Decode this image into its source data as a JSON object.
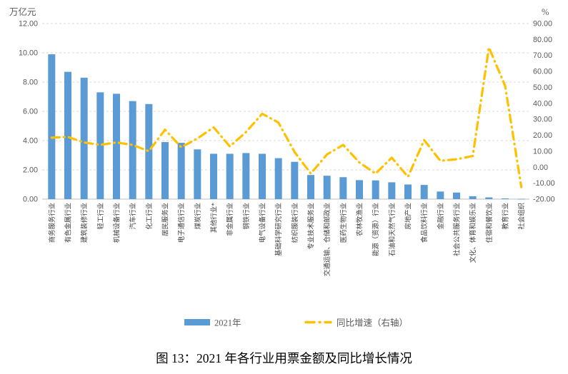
{
  "style": {
    "background": "#FFFFFF",
    "bar_color": "#5B9BD5",
    "line_color": "#FFC000",
    "grid_color": "#D9D9D9",
    "axis_color": "#BFBFBF",
    "tick_text_color": "#595959",
    "caption_color": "#000000"
  },
  "chart_data": {
    "type": "combo_bar_line",
    "title": "图 13：2021 年各行业用票金额及同比增长情况",
    "grid": true,
    "legend_position": "bottom",
    "categories": [
      "商务服务行业",
      "有色金属行业",
      "建筑装修行业",
      "轻工行业",
      "机械设备行业",
      "汽车行业",
      "化工行业",
      "居民服务业",
      "电子通信行业",
      "煤炭行业",
      "其他行业*",
      "非金属行业",
      "钢铁行业",
      "电气设备行业",
      "基础科学研究行业",
      "纺织服装行业",
      "专业技术服务业",
      "交通运输、仓储和邮政业",
      "医药生物行业",
      "农林牧渔业",
      "能源（资源）行业",
      "石油和天然气行业",
      "房地产业",
      "食品饮料行业",
      "金融行业",
      "社会公共服务行业",
      "文化、体育和娱乐业",
      "住宿和餐饮业",
      "教育行业",
      "社会组织"
    ],
    "series": [
      {
        "name": "2021年",
        "type": "bar",
        "axis": "left",
        "color": "#5B9BD5",
        "values": [
          9.9,
          8.7,
          8.3,
          7.3,
          7.2,
          6.7,
          6.5,
          3.9,
          3.85,
          3.4,
          3.1,
          3.1,
          3.15,
          3.1,
          2.8,
          2.55,
          1.65,
          1.6,
          1.5,
          1.3,
          1.28,
          1.15,
          1.0,
          0.97,
          0.52,
          0.45,
          0.2,
          0.12,
          0.05,
          0.02
        ]
      },
      {
        "name": "同比增速（右轴）",
        "type": "line",
        "line_style": "dash-dot",
        "axis": "right",
        "color": "#FFC000",
        "values": [
          18.5,
          19,
          15.5,
          14,
          15.5,
          14,
          10,
          23.5,
          12.5,
          18,
          25,
          13,
          22,
          33.5,
          28,
          9.5,
          -4,
          8,
          14,
          3,
          -4,
          6,
          -6,
          17,
          4,
          5,
          7,
          75,
          51,
          -12.5
        ]
      }
    ],
    "left_axis": {
      "unit": "万亿元",
      "min": 0,
      "max": 12,
      "step": 2,
      "tick_format": "0.00",
      "ticks": [
        "0.00",
        "2.00",
        "4.00",
        "6.00",
        "8.00",
        "10.00",
        "12.00"
      ]
    },
    "right_axis": {
      "unit": "%",
      "min": -20,
      "max": 90,
      "step": 10,
      "tick_format": "0.00",
      "ticks": [
        "-20.00",
        "-10.00",
        "0.00",
        "10.00",
        "20.00",
        "30.00",
        "40.00",
        "50.00",
        "60.00",
        "70.00",
        "80.00",
        "90.00"
      ]
    },
    "legend": [
      {
        "label": "2021年",
        "swatch": "bar"
      },
      {
        "label": "同比增速（右轴）",
        "swatch": "dash-dot-line"
      }
    ]
  }
}
